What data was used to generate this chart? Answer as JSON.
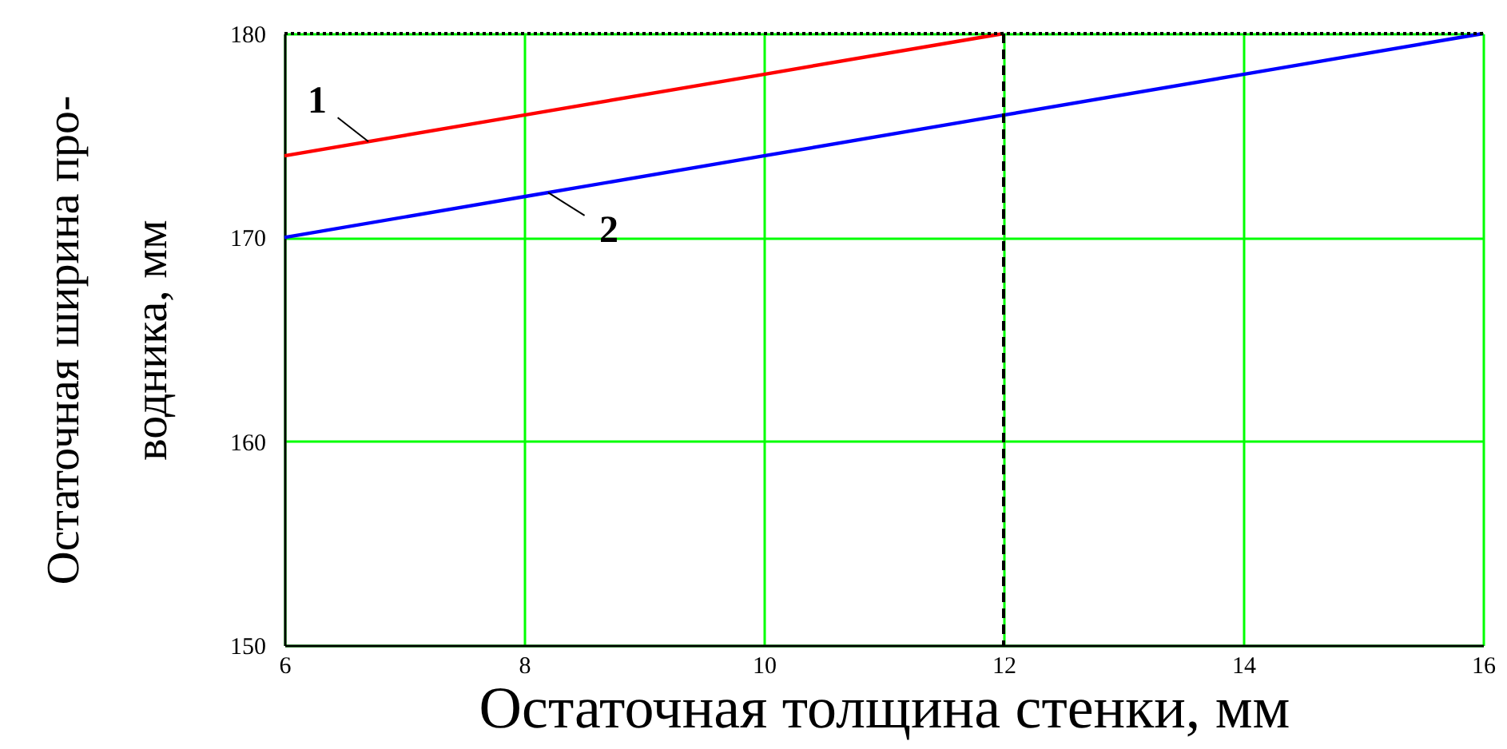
{
  "chart_data": {
    "type": "line",
    "xlabel": "Остаточная толщина стенки, мм",
    "ylabel": "Остаточная ширина про-\nводника, мм",
    "series": [
      {
        "color": "#ff0000",
        "x": [
          6,
          8,
          10,
          12
        ],
        "values": [
          174,
          176,
          178,
          180
        ]
      },
      {
        "color": "#0000ff",
        "x": [
          6,
          8,
          10,
          12,
          14,
          16
        ],
        "values": [
          170,
          172,
          174,
          176,
          178,
          180
        ]
      }
    ],
    "xlim": [
      6,
      16
    ],
    "ylim": [
      150,
      180
    ],
    "xticks": [
      6,
      8,
      10,
      12,
      14,
      16
    ],
    "yticks": [
      150,
      160,
      170,
      180
    ],
    "grid": true,
    "line_style": "solid",
    "ref_lines": [
      {
        "axis": "y",
        "value": 180,
        "color": "#000000",
        "line_style": "dotted"
      },
      {
        "axis": "x",
        "value": 12,
        "color": "#000000",
        "line_style": "dashed"
      }
    ],
    "annotations": [
      {
        "text": "1",
        "x": 6.7,
        "y": 174.7
      },
      {
        "text": "2",
        "x": 8.2,
        "y": 172.2
      }
    ]
  }
}
